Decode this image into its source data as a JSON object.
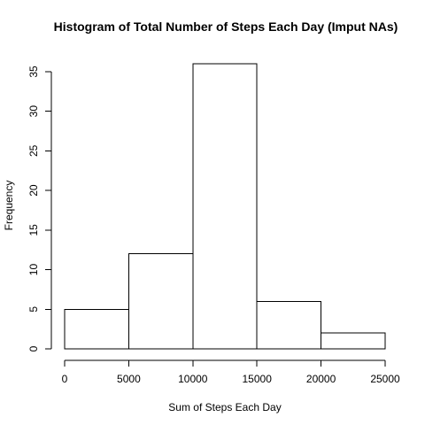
{
  "chart_data": {
    "type": "bar",
    "title": "Histogram of Total Number of Steps Each Day (Imput NAs)",
    "xlabel": "Sum of Steps Each Day",
    "ylabel": "Frequency",
    "bins": [
      {
        "start": 0,
        "end": 5000,
        "count": 5
      },
      {
        "start": 5000,
        "end": 10000,
        "count": 12
      },
      {
        "start": 10000,
        "end": 15000,
        "count": 36
      },
      {
        "start": 15000,
        "end": 20000,
        "count": 6
      },
      {
        "start": 20000,
        "end": 25000,
        "count": 2
      }
    ],
    "xlim": [
      0,
      25000
    ],
    "ylim": [
      0,
      36
    ],
    "x_ticks": [
      "0",
      "5000",
      "10000",
      "15000",
      "20000",
      "25000"
    ],
    "x_tick_values": [
      0,
      5000,
      10000,
      15000,
      20000,
      25000
    ],
    "y_ticks": [
      "0",
      "5",
      "10",
      "15",
      "20",
      "25",
      "30",
      "35"
    ],
    "y_tick_values": [
      0,
      5,
      10,
      15,
      20,
      25,
      30,
      35
    ],
    "grid": false,
    "legend": "none",
    "bar_fill": "#ffffff",
    "bar_stroke": "#000000"
  }
}
